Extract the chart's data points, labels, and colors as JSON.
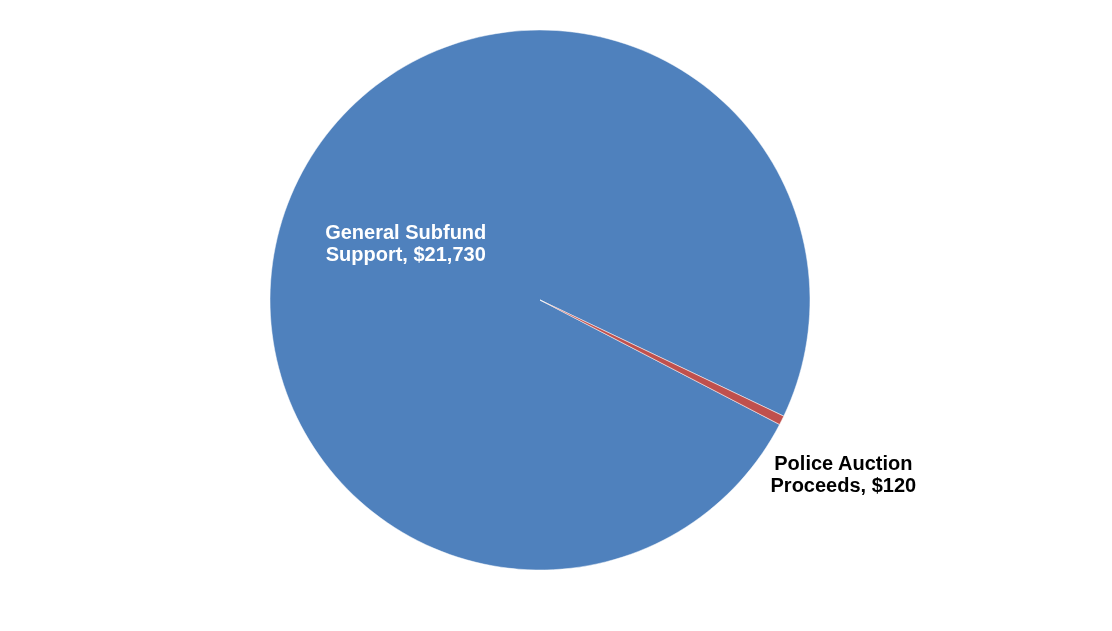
{
  "chart_data": {
    "type": "pie",
    "categories": [
      "General Subfund Support",
      "Police Auction Proceeds"
    ],
    "values": [
      21730,
      120
    ],
    "value_labels": [
      "$21,730",
      "$120"
    ],
    "colors": [
      "#4f81bd",
      "#c0504d"
    ],
    "legend": false
  }
}
